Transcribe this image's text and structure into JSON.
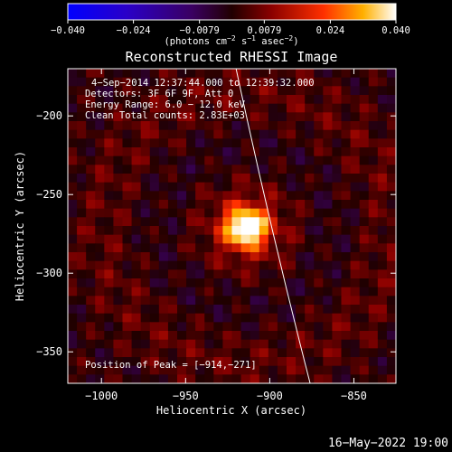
{
  "chart_data": {
    "type": "heatmap",
    "title": "Reconstructed RHESSI Image",
    "xlabel": "Heliocentric X (arcsec)",
    "ylabel": "Heliocentric Y (arcsec)",
    "xlim": [
      -1020,
      -825
    ],
    "ylim": [
      -370,
      -170
    ],
    "xticks": [
      -1000,
      -950,
      -900,
      -850
    ],
    "yticks": [
      -200,
      -250,
      -300,
      -350
    ],
    "x_tick_labels": [
      "−1000",
      "−950",
      "−900",
      "−850"
    ],
    "y_tick_labels": [
      "−200",
      "−250",
      "−300",
      "−350"
    ],
    "colorbar": {
      "range": [
        -0.04,
        0.04
      ],
      "ticks": [
        -0.04,
        -0.024,
        -0.0079,
        0.0079,
        0.024,
        0.04
      ],
      "tick_labels": [
        "−0.040",
        "−0.024",
        "−0.0079",
        "0.0079",
        "0.024",
        "0.040"
      ],
      "unit_base": "(photons cm",
      "unit_exp1": "−2",
      "unit_mid": " s",
      "unit_exp2": "−1",
      "unit_tail": " asec",
      "unit_exp3": "−2",
      "unit_close": ")"
    },
    "annotations": [
      "4−Sep−2014 12:37:44.000 to 12:39:32.000",
      "Detectors: 3F 6F 9F, Att 0",
      "Energy Range: 6.0 − 12.0 keV",
      "Clean    Total counts: 2.83E+03"
    ],
    "peak_label": "Position of Peak = [−914,−271]",
    "peak": {
      "x": -914,
      "y": -271
    },
    "limb_curve": [
      [
        -920,
        -170
      ],
      [
        -900,
        -270
      ],
      [
        -876,
        -370
      ]
    ],
    "footer_timestamp": "16−May−2022 19:00"
  }
}
